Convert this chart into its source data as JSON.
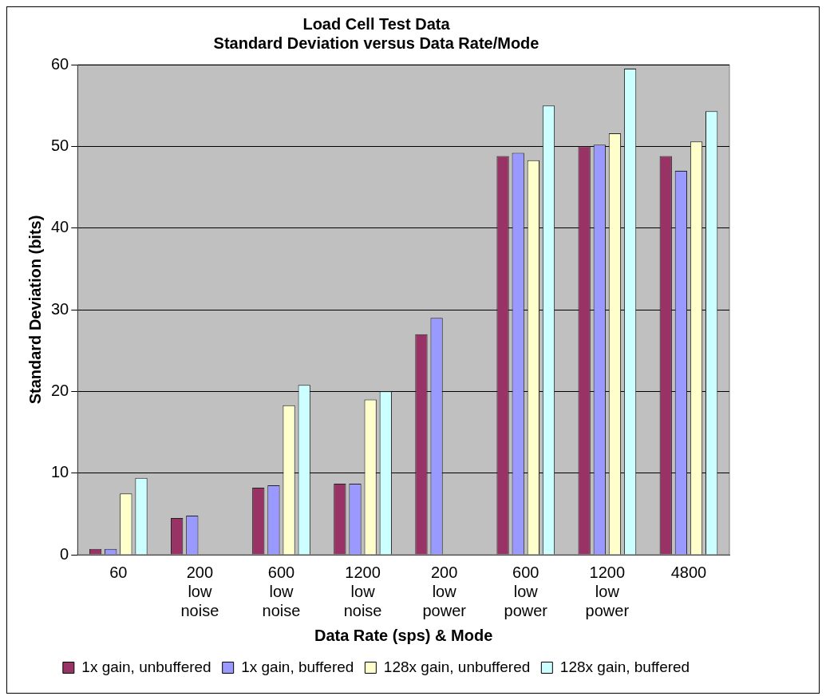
{
  "chart_data": {
    "type": "bar",
    "title": [
      "Load Cell Test Data",
      "Standard Deviation versus Data Rate/Mode"
    ],
    "xlabel": "Data Rate (sps) & Mode",
    "ylabel": "Standard Deviation (bits)",
    "categories": [
      "60",
      "200 low noise",
      "600 low noise",
      "1200 low noise",
      "200 low power",
      "600 low power",
      "1200 low power",
      "4800"
    ],
    "series": [
      {
        "name": "1x gain, unbuffered",
        "color": "#993366",
        "values": [
          0.7,
          4.5,
          8.2,
          8.7,
          27,
          48.8,
          50,
          48.8
        ]
      },
      {
        "name": "1x gain, buffered",
        "color": "#9999ff",
        "values": [
          0.7,
          4.8,
          8.5,
          8.7,
          29,
          49.2,
          50.2,
          47
        ]
      },
      {
        "name": "128x gain, unbuffered",
        "color": "#ffffcc",
        "values": [
          7.5,
          null,
          18.3,
          19,
          null,
          48.3,
          51.6,
          50.6
        ]
      },
      {
        "name": "128x gain, buffered",
        "color": "#ccffff",
        "values": [
          9.4,
          null,
          20.8,
          20,
          null,
          55,
          59.5,
          54.3
        ]
      }
    ],
    "ylim": [
      0,
      60
    ],
    "yticks": [
      0,
      10,
      20,
      30,
      40,
      50,
      60
    ],
    "grid": "y",
    "legend": "bottom"
  }
}
